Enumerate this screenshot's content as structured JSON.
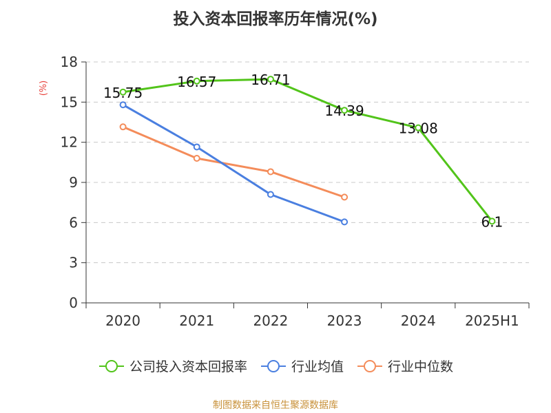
{
  "title": "投入资本回报率历年情况(%)",
  "ylabel": "(%)",
  "source": "制图数据来自恒生聚源数据库",
  "colors": {
    "series1": "#52c41a",
    "series2": "#4a7fe0",
    "series3": "#f48c5a",
    "ylabel": "#e8423c",
    "source": "#c8913a"
  },
  "chart_data": {
    "type": "line",
    "title": "投入资本回报率历年情况(%)",
    "xlabel": "",
    "ylabel": "(%)",
    "categories": [
      "2020",
      "2021",
      "2022",
      "2023",
      "2024",
      "2025H1"
    ],
    "ylim": [
      0,
      18
    ],
    "yticks": [
      0,
      3,
      6,
      9,
      12,
      15,
      18
    ],
    "grid": true,
    "legend_position": "bottom",
    "series": [
      {
        "name": "公司投入资本回报率",
        "values": [
          15.75,
          16.57,
          16.71,
          14.39,
          13.08,
          6.1
        ],
        "labels": [
          "15.75",
          "16.57",
          "16.71",
          "14.39",
          "13.08",
          "6.1"
        ]
      },
      {
        "name": "行业均值",
        "values": [
          14.8,
          11.65,
          8.1,
          6.05,
          null,
          null
        ]
      },
      {
        "name": "行业中位数",
        "values": [
          13.15,
          10.8,
          9.8,
          7.9,
          null,
          null
        ]
      }
    ]
  }
}
